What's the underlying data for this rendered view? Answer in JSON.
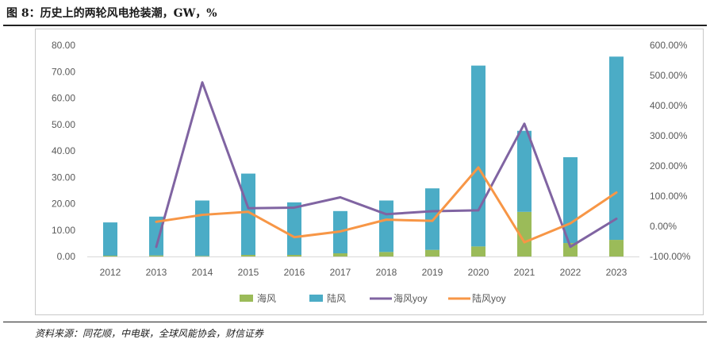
{
  "title": "图 8：历史上的两轮风电抢装潮，GW，%",
  "source": "资料来源：同花顺，中电联，全球风能协会，财信证券",
  "chart_data": {
    "type": "bar",
    "stacked": true,
    "categories": [
      "2012",
      "2013",
      "2014",
      "2015",
      "2016",
      "2017",
      "2018",
      "2019",
      "2020",
      "2021",
      "2022",
      "2023"
    ],
    "series": [
      {
        "name": "海风",
        "kind": "bar",
        "axis": "left",
        "color": "#9bbb59",
        "values": [
          0.3,
          0.4,
          0.2,
          0.6,
          0.6,
          1.2,
          1.7,
          2.5,
          3.8,
          16.9,
          5.1,
          6.3
        ]
      },
      {
        "name": "陆风",
        "kind": "bar",
        "axis": "left",
        "color": "#4bacc6",
        "values": [
          12.6,
          14.7,
          21.0,
          30.8,
          19.9,
          16.0,
          19.5,
          23.3,
          68.5,
          30.7,
          32.5,
          69.4
        ]
      },
      {
        "name": "海风yoy",
        "kind": "line",
        "axis": "right",
        "color": "#8064a2",
        "values": [
          null,
          -68,
          477,
          60,
          62,
          96,
          40,
          50,
          53,
          340,
          -68,
          25
        ]
      },
      {
        "name": "陆风yoy",
        "kind": "line",
        "axis": "right",
        "color": "#f79646",
        "values": [
          null,
          15,
          38,
          48,
          -36,
          -17,
          22,
          18,
          195,
          -53,
          10,
          112
        ]
      }
    ],
    "y_left": {
      "min": 0,
      "max": 80,
      "step": 10,
      "ticks": [
        "0.00",
        "10.00",
        "20.00",
        "30.00",
        "40.00",
        "50.00",
        "60.00",
        "70.00",
        "80.00"
      ]
    },
    "y_right": {
      "min": -100,
      "max": 600,
      "step": 100,
      "ticks": [
        "-100.00%",
        "0.00%",
        "100.00%",
        "200.00%",
        "300.00%",
        "400.00%",
        "500.00%",
        "600.00%"
      ]
    },
    "legend_position": "bottom"
  }
}
